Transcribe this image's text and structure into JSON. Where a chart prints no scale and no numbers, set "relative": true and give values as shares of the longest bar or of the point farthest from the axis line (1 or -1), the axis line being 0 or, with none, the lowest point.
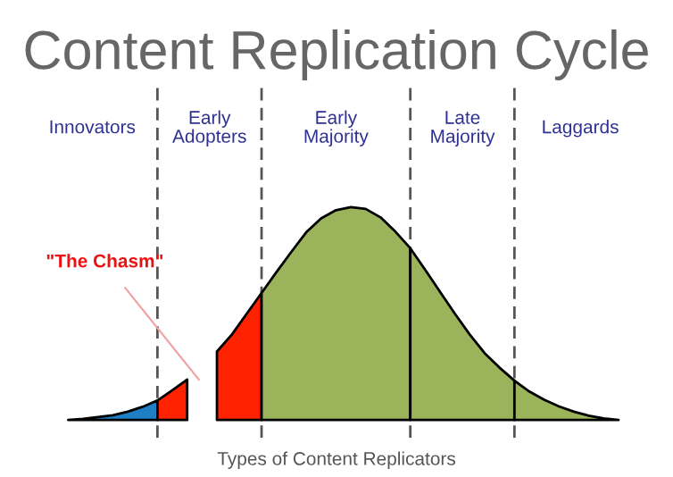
{
  "chart_data": {
    "type": "area",
    "title": "Content Replication Cycle",
    "xlabel": "Types of Content Replicators",
    "relative": true,
    "grid": "x",
    "categories": [
      null,
      null,
      null,
      null,
      null,
      null,
      null,
      null,
      null,
      null,
      null,
      null,
      null,
      null,
      null,
      null,
      null,
      null,
      null,
      null,
      null,
      null,
      null,
      null,
      null,
      null,
      null,
      null,
      null,
      null,
      null,
      null,
      null,
      null,
      null,
      null,
      null,
      null
    ],
    "series": [
      {
        "color": "#1f7fc4",
        "values": [
          0,
          0.006,
          0.014,
          0.022,
          0.039,
          0.062,
          0.092,
          null,
          null,
          null,
          null,
          null,
          null,
          null,
          null,
          null,
          null,
          null,
          null,
          null,
          null,
          null,
          null,
          null,
          null,
          null,
          null,
          null,
          null,
          null,
          null,
          null,
          null,
          null,
          null,
          null,
          null,
          null
        ]
      },
      {
        "color": "#ff2200",
        "values": [
          null,
          null,
          null,
          null,
          null,
          null,
          0.092,
          0.14,
          0.19,
          null,
          null,
          null,
          null,
          null,
          null,
          null,
          null,
          null,
          null,
          null,
          null,
          null,
          null,
          null,
          null,
          null,
          null,
          null,
          null,
          null,
          null,
          null,
          null,
          null,
          null,
          null,
          null,
          null
        ]
      },
      {
        "color": "#ff2200",
        "values": [
          null,
          null,
          null,
          null,
          null,
          null,
          null,
          null,
          null,
          null,
          0.322,
          0.401,
          0.499,
          0.597,
          null,
          null,
          null,
          null,
          null,
          null,
          null,
          null,
          null,
          null,
          null,
          null,
          null,
          null,
          null,
          null,
          null,
          null,
          null,
          null,
          null,
          null,
          null,
          null
        ]
      },
      {
        "color": "#9bb35a",
        "values": [
          null,
          null,
          null,
          null,
          null,
          null,
          null,
          null,
          null,
          null,
          null,
          null,
          null,
          0.597,
          0.695,
          0.79,
          0.882,
          0.947,
          0.986,
          1,
          0.992,
          0.952,
          0.885,
          0.807,
          null,
          null,
          null,
          null,
          null,
          null,
          null,
          null,
          null,
          null,
          null,
          null,
          null,
          null
        ]
      },
      {
        "color": "#9bb35a",
        "values": [
          null,
          null,
          null,
          null,
          null,
          null,
          null,
          null,
          null,
          null,
          null,
          null,
          null,
          null,
          null,
          null,
          null,
          null,
          null,
          null,
          null,
          null,
          null,
          0.807,
          0.706,
          0.602,
          0.499,
          0.401,
          0.314,
          0.246,
          0.185,
          null,
          null,
          null,
          null,
          null,
          null,
          null
        ]
      },
      {
        "color": "#9bb35a",
        "values": [
          null,
          null,
          null,
          null,
          null,
          null,
          null,
          null,
          null,
          null,
          null,
          null,
          null,
          null,
          null,
          null,
          null,
          null,
          null,
          null,
          null,
          null,
          null,
          null,
          null,
          null,
          null,
          null,
          null,
          null,
          0.185,
          0.134,
          0.095,
          0.064,
          0.039,
          0.02,
          0.008,
          0
        ]
      }
    ],
    "annotations": [
      "Innovators",
      "Early\nAdopters",
      "Early\nMajority",
      "Late\nMajority",
      "Laggards",
      "\"The Chasm\""
    ]
  }
}
